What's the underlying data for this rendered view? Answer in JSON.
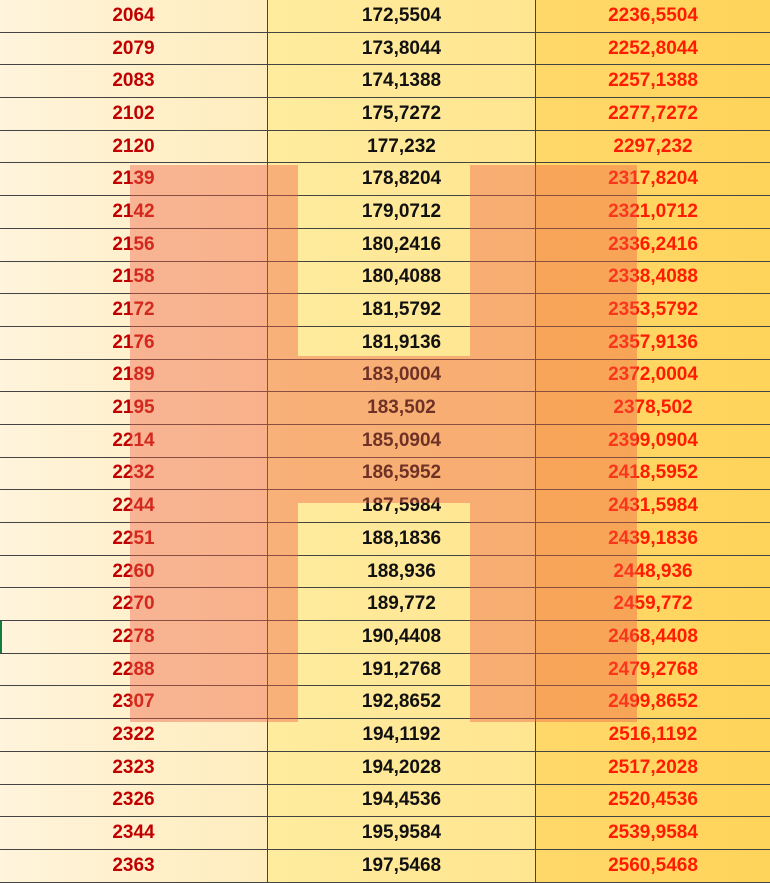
{
  "rows": [
    [
      "2064",
      "172,5504",
      "2236,5504"
    ],
    [
      "2079",
      "173,8044",
      "2252,8044"
    ],
    [
      "2083",
      "174,1388",
      "2257,1388"
    ],
    [
      "2102",
      "175,7272",
      "2277,7272"
    ],
    [
      "2120",
      "177,232",
      "2297,232"
    ],
    [
      "2139",
      "178,8204",
      "2317,8204"
    ],
    [
      "2142",
      "179,0712",
      "2321,0712"
    ],
    [
      "2156",
      "180,2416",
      "2336,2416"
    ],
    [
      "2158",
      "180,4088",
      "2338,4088"
    ],
    [
      "2172",
      "181,5792",
      "2353,5792"
    ],
    [
      "2176",
      "181,9136",
      "2357,9136"
    ],
    [
      "2189",
      "183,0004",
      "2372,0004"
    ],
    [
      "2195",
      "183,502",
      "2378,502"
    ],
    [
      "2214",
      "185,0904",
      "2399,0904"
    ],
    [
      "2232",
      "186,5952",
      "2418,5952"
    ],
    [
      "2244",
      "187,5984",
      "2431,5984"
    ],
    [
      "2251",
      "188,1836",
      "2439,1836"
    ],
    [
      "2260",
      "188,936",
      "2448,936"
    ],
    [
      "2270",
      "189,772",
      "2459,772"
    ],
    [
      "2278",
      "190,4408",
      "2468,4408"
    ],
    [
      "2288",
      "191,2768",
      "2479,2768"
    ],
    [
      "2307",
      "192,8652",
      "2499,8652"
    ],
    [
      "2322",
      "194,1192",
      "2516,1192"
    ],
    [
      "2323",
      "194,2028",
      "2517,2028"
    ],
    [
      "2326",
      "194,4536",
      "2520,4536"
    ],
    [
      "2344",
      "195,9584",
      "2539,9584"
    ],
    [
      "2363",
      "197,5468",
      "2560,5468"
    ]
  ],
  "active_row": 19,
  "watermark": {
    "letter": "H",
    "color": "#ee5f46"
  },
  "colors": {
    "col1_text": "#c00000",
    "col2_text": "#111111",
    "col3_text": "#ff1a00"
  }
}
